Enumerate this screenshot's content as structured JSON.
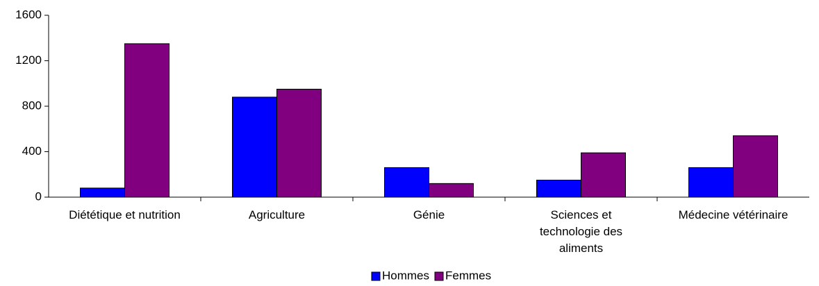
{
  "chart_data": {
    "type": "bar",
    "categories": [
      "Diététique et nutrition",
      "Agriculture",
      "Génie",
      "Sciences et technologie des aliments",
      "Médecine vétérinaire"
    ],
    "series": [
      {
        "name": "Hommes",
        "color": "#0000ff",
        "values": [
          80,
          880,
          260,
          150,
          260
        ]
      },
      {
        "name": "Femmes",
        "color": "#800080",
        "values": [
          1350,
          950,
          120,
          390,
          540
        ]
      }
    ],
    "ylim": [
      0,
      1600
    ],
    "yticks": [
      0,
      400,
      800,
      1200,
      1600
    ],
    "grid": false,
    "legend": "bottom"
  }
}
